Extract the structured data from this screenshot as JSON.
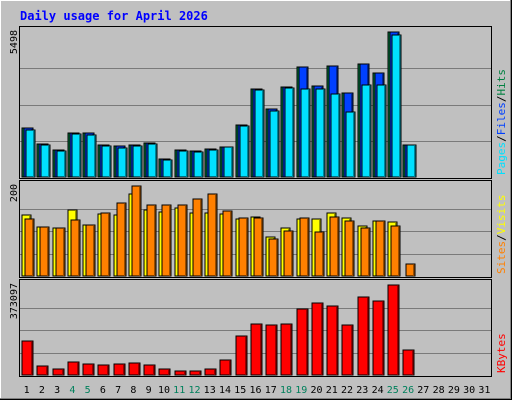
{
  "colors": {
    "background": "#c0c0c0",
    "panel": "#c0c0c0",
    "title": "#0000ff",
    "hits": "#008040",
    "files": "#0040ff",
    "pages": "#00e0ff",
    "visits": "#ffff00",
    "sites": "#ff8000",
    "kbytes": "#ff0000",
    "separator": "#000000",
    "weekend_day": "#00805c",
    "weekday_day": "#000000"
  },
  "chart_data": {
    "type": "bar",
    "title": "Daily usage for April 2026",
    "x": [
      "1",
      "2",
      "3",
      "4",
      "5",
      "6",
      "7",
      "8",
      "9",
      "10",
      "11",
      "12",
      "13",
      "14",
      "15",
      "16",
      "17",
      "18",
      "19",
      "20",
      "21",
      "22",
      "23",
      "24",
      "25",
      "26",
      "27",
      "28",
      "29",
      "30",
      "31"
    ],
    "weekend_days": [
      "4",
      "5",
      "11",
      "12",
      "18",
      "19",
      "25",
      "26"
    ],
    "panels": [
      {
        "id": "top",
        "ymax_label": "5498",
        "ylim": [
          0,
          5498
        ],
        "legend": [
          {
            "text": "Hits",
            "color": "#008040"
          },
          {
            "text": "/",
            "color": "#000000"
          },
          {
            "text": "Files",
            "color": "#0040ff"
          },
          {
            "text": "/",
            "color": "#000000"
          },
          {
            "text": "Pages",
            "color": "#00e0ff"
          }
        ],
        "series": [
          {
            "name": "Hits",
            "color": "#008040",
            "values": [
              1840,
              1240,
              1020,
              1670,
              1680,
              1200,
              1160,
              1200,
              1300,
              700,
              1040,
              980,
              1060,
              1150,
              1980,
              3350,
              2580,
              3420,
              4160,
              3460,
              4200,
              3200,
              4270,
              3940,
              5480,
              1220,
              null,
              null,
              null,
              null,
              null
            ]
          },
          {
            "name": "Files",
            "color": "#0040ff",
            "values": [
              1840,
              1240,
              1020,
              1670,
              1680,
              1200,
              1160,
              1200,
              1300,
              700,
              1040,
              980,
              1060,
              1150,
              1980,
              3350,
              2580,
              3420,
              4160,
              3460,
              4200,
              3200,
              4270,
              3940,
              5480,
              1220,
              null,
              null,
              null,
              null,
              null
            ]
          },
          {
            "name": "Pages",
            "color": "#00e0ff",
            "values": [
              1800,
              1200,
              990,
              1620,
              1610,
              1160,
              1110,
              1160,
              1270,
              660,
              990,
              940,
              1020,
              1120,
              1920,
              3300,
              2520,
              3370,
              3340,
              3330,
              3150,
              2460,
              3490,
              3500,
              5400,
              1200,
              null,
              null,
              null,
              null,
              null
            ]
          }
        ]
      },
      {
        "id": "middle",
        "ymax_label": "200",
        "ylim": [
          0,
          200
        ],
        "legend": [
          {
            "text": "Visits",
            "color": "#ffff00"
          },
          {
            "text": "/",
            "color": "#000000"
          },
          {
            "text": "Sites",
            "color": "#ff8000"
          }
        ],
        "series": [
          {
            "name": "Visits",
            "color": "#ffff00",
            "values": [
              136,
              109,
              106,
              146,
              114,
              138,
              135,
              183,
              147,
              143,
              150,
              141,
              139,
              137,
              127,
              130,
              86,
              106,
              127,
              126,
              141,
              128,
              110,
              123,
              120,
              null,
              null,
              null,
              null,
              null,
              null
            ]
          },
          {
            "name": "Sites",
            "color": "#ff8000",
            "values": [
              127,
              108,
              106,
              125,
              113,
              140,
              163,
              200,
              158,
              158,
              158,
              172,
              182,
              144,
              129,
              128,
              82,
              101,
              129,
              98,
              130,
              123,
              106,
              123,
              111,
              26,
              null,
              null,
              null,
              null,
              null
            ]
          }
        ]
      },
      {
        "id": "bottom",
        "ymax_label": "373097",
        "ylim": [
          0,
          373097
        ],
        "legend": [
          {
            "text": "KBytes",
            "color": "#ff0000"
          }
        ],
        "series": [
          {
            "name": "KBytes",
            "color": "#ff0000",
            "values": [
              142000,
              39000,
              23000,
              54000,
              46000,
              43000,
              45000,
              49000,
              43000,
              24000,
              15000,
              15000,
              25000,
              62000,
              161000,
              213000,
              207000,
              211000,
              275000,
              298000,
              288000,
              207000,
              324000,
              305000,
              373097,
              105000,
              null,
              null,
              null,
              null,
              null
            ]
          }
        ]
      }
    ]
  }
}
